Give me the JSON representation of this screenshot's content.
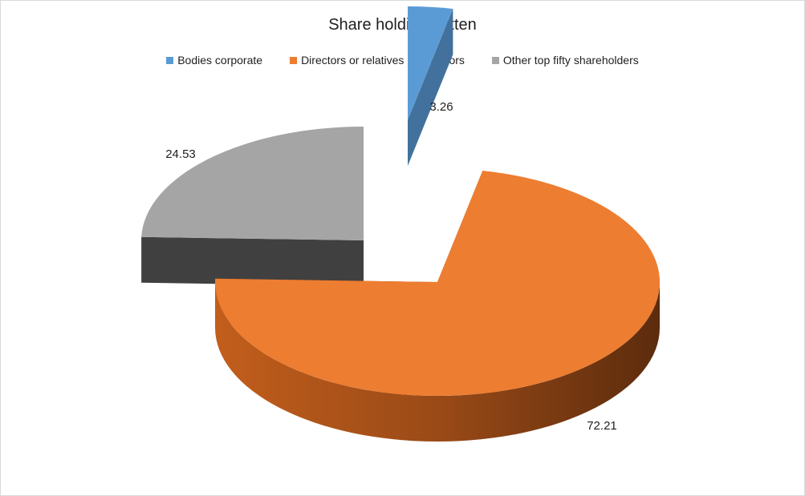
{
  "chart_data": {
    "type": "pie",
    "title": "Share holding patten",
    "legend_position": "top",
    "categories": [
      "Bodies corporate",
      "Directors or relatives of Directors",
      "Other top fifty shareholders"
    ],
    "values": [
      3.26,
      72.21,
      24.53
    ],
    "colors": [
      "#5b9bd5",
      "#ed7d31",
      "#a5a5a5"
    ],
    "data_labels": [
      "3.26",
      "72.21",
      "24.53"
    ],
    "style": "3d-exploded"
  }
}
